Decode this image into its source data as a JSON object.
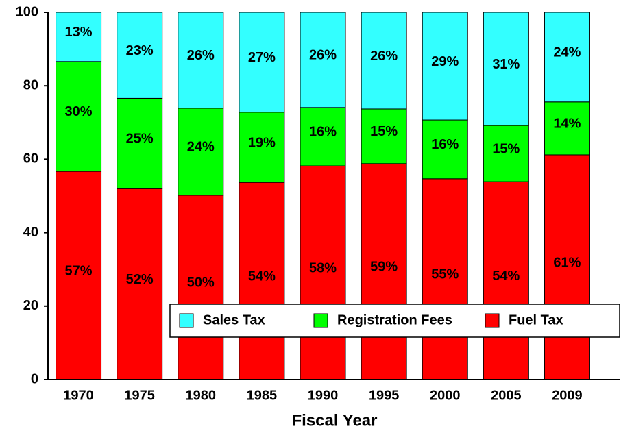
{
  "chart_data": {
    "type": "stacked_bar",
    "x_label": "Fiscal Year",
    "categories": [
      "1970",
      "1975",
      "1980",
      "1985",
      "1990",
      "1995",
      "2000",
      "2005",
      "2009"
    ],
    "series": [
      {
        "name": "Fuel Tax",
        "color": "#ff0000",
        "values": [
          56.7,
          52.0,
          50.2,
          53.7,
          58.2,
          58.8,
          54.7,
          53.9,
          61.2
        ],
        "value_labels": [
          "57%",
          "52%",
          "50%",
          "54%",
          "58%",
          "59%",
          "55%",
          "54%",
          "61%"
        ]
      },
      {
        "name": "Registration Fees",
        "color": "#00ff00",
        "values": [
          29.9,
          24.6,
          23.7,
          19.1,
          15.9,
          14.9,
          16.0,
          15.3,
          14.4
        ],
        "value_labels": [
          "30%",
          "25%",
          "24%",
          "19%",
          "16%",
          "15%",
          "16%",
          "15%",
          "14%"
        ]
      },
      {
        "name": "Sales Tax",
        "color": "#33ffff",
        "values": [
          13.4,
          23.4,
          26.1,
          27.2,
          25.9,
          26.3,
          29.3,
          30.8,
          24.4
        ],
        "value_labels": [
          "13%",
          "23%",
          "26%",
          "27%",
          "26%",
          "26%",
          "29%",
          "31%",
          "24%"
        ]
      }
    ],
    "ylim": [
      0,
      100
    ],
    "yticks": [
      0,
      20,
      40,
      60,
      80,
      100
    ],
    "grid": false,
    "legend": "lower right"
  }
}
